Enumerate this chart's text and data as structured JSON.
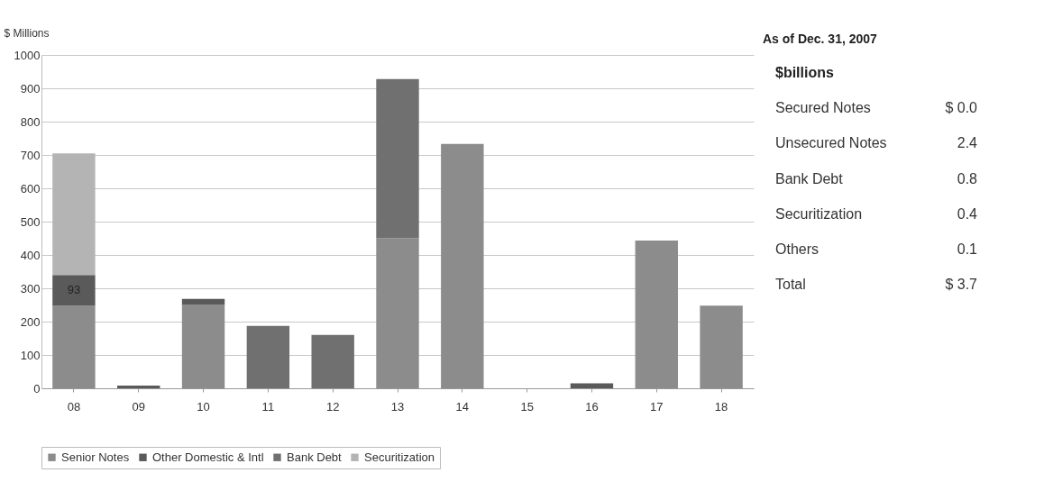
{
  "chart_data": [
    {
      "type": "bar",
      "stacked": true,
      "ylabel": "$ Millions",
      "categories": [
        "08",
        "09",
        "10",
        "11",
        "12",
        "13",
        "14",
        "15",
        "16",
        "17",
        "18"
      ],
      "series": [
        {
          "name": "Senior Notes",
          "color": "#8c8c8c",
          "values": [
            247,
            0,
            250,
            0,
            0,
            450,
            733,
            0,
            0,
            443,
            248
          ]
        },
        {
          "name": "Other Domestic & Intl",
          "color": "#5a5a5a",
          "values": [
            93,
            8,
            18,
            0,
            0,
            0,
            0,
            0,
            15,
            0,
            0
          ],
          "value_labels": [
            "93",
            null,
            null,
            null,
            null,
            null,
            null,
            null,
            null,
            null,
            null
          ]
        },
        {
          "name": "Bank Debt",
          "color": "#707070",
          "values": [
            0,
            0,
            0,
            187,
            160,
            478,
            0,
            0,
            0,
            0,
            0
          ]
        },
        {
          "name": "Securitization",
          "color": "#b4b4b4",
          "values": [
            365,
            0,
            0,
            0,
            0,
            0,
            0,
            0,
            0,
            0,
            0
          ]
        }
      ],
      "ylim": [
        0,
        1000
      ],
      "yticks": [
        0,
        100,
        200,
        300,
        400,
        500,
        600,
        700,
        800,
        900,
        1000
      ],
      "grid": "y",
      "legend": "bottom"
    },
    {
      "type": "other",
      "title": "As of Dec. 31, 2007",
      "subtitle": "$billions",
      "categories": [
        "Secured Notes",
        "Unsecured Notes",
        "Bank Debt",
        "Securitization",
        "Others",
        "Total"
      ],
      "value_labels": [
        "$ 0.0",
        "2.4",
        "0.8",
        "0.4",
        "0.1",
        "$ 3.7"
      ]
    }
  ]
}
